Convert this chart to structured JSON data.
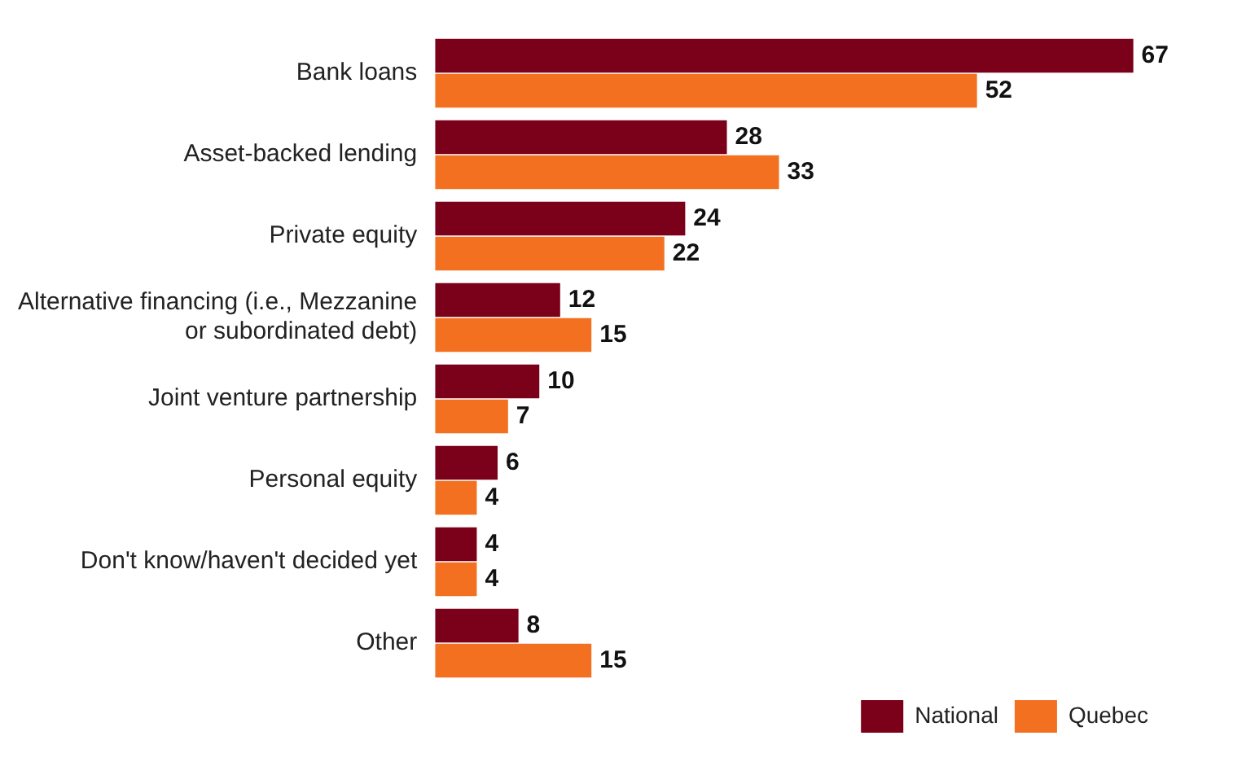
{
  "chart_data": {
    "type": "bar",
    "orientation": "horizontal",
    "categories": [
      "Bank loans",
      "Asset-backed lending",
      "Private equity",
      "Alternative financing (i.e., Mezzanine or subordinated debt)",
      "Joint venture partnership",
      "Personal equity",
      "Don't know/haven't decided yet",
      "Other"
    ],
    "series": [
      {
        "name": "National",
        "color": "#7b0019",
        "values": [
          67,
          28,
          24,
          12,
          10,
          6,
          4,
          8
        ]
      },
      {
        "name": "Quebec",
        "color": "#f37021",
        "values": [
          52,
          33,
          22,
          15,
          7,
          4,
          4,
          15
        ]
      }
    ],
    "data_labels": true,
    "legend": "bottom right"
  }
}
